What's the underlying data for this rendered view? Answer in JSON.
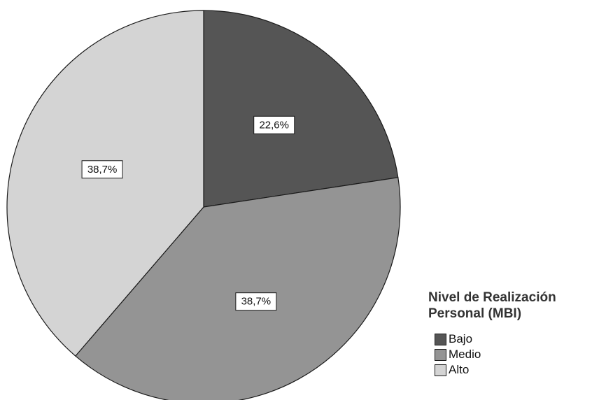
{
  "chart_data": {
    "type": "pie",
    "legend_title": "Nivel de Realización Personal (MBI)",
    "legend_position": "bottom-right",
    "start_angle_deg": 0,
    "direction": "clockwise",
    "slices": [
      {
        "label": "Bajo",
        "value": 22.6,
        "display": "22,6%",
        "color": "#555555"
      },
      {
        "label": "Medio",
        "value": 38.7,
        "display": "38,7%",
        "color": "#949494"
      },
      {
        "label": "Alto",
        "value": 38.7,
        "display": "38,7%",
        "color": "#d4d4d4"
      }
    ]
  }
}
